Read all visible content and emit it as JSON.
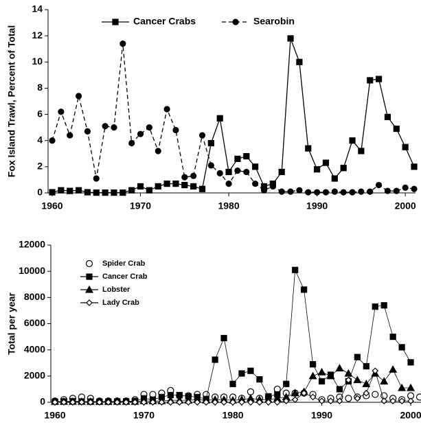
{
  "chart_data": [
    {
      "type": "line",
      "y_label": "Fox Island Trawl, Percent of Total",
      "x": [
        1960,
        1961,
        1962,
        1963,
        1964,
        1965,
        1966,
        1967,
        1968,
        1969,
        1970,
        1971,
        1972,
        1973,
        1974,
        1975,
        1976,
        1977,
        1978,
        1979,
        1980,
        1981,
        1982,
        1983,
        1984,
        1985,
        1986,
        1987,
        1988,
        1989,
        1990,
        1991,
        1992,
        1993,
        1994,
        1995,
        1996,
        1997,
        1998,
        1999,
        2000,
        2001
      ],
      "series": [
        {
          "name": "Cancer Crabs",
          "color": "#000000",
          "marker": "square",
          "dash": false,
          "values": [
            0.05,
            0.2,
            0.15,
            0.2,
            0.05,
            0.02,
            0.02,
            0.02,
            0.02,
            0.2,
            0.5,
            0.2,
            0.5,
            0.7,
            0.7,
            0.6,
            0.5,
            0.3,
            3.8,
            5.7,
            1.6,
            2.6,
            2.8,
            2.0,
            0.5,
            0.7,
            1.6,
            11.8,
            10.0,
            3.4,
            1.8,
            2.3,
            1.1,
            1.9,
            4.0,
            3.2,
            8.6,
            8.7,
            5.8,
            4.9,
            3.5,
            2.0
          ]
        },
        {
          "name": "Searobin",
          "color": "#000000",
          "marker": "circle",
          "dash": true,
          "values": [
            4.0,
            6.2,
            4.4,
            7.4,
            4.7,
            1.1,
            5.1,
            5.0,
            11.4,
            3.8,
            4.5,
            5.0,
            3.2,
            6.4,
            4.8,
            1.2,
            1.3,
            4.4,
            2.1,
            1.5,
            0.7,
            1.7,
            1.6,
            0.7,
            0.2,
            0.5,
            0.1,
            0.1,
            0.2,
            0.05,
            0.05,
            0.05,
            0.1,
            0.05,
            0.05,
            0.1,
            0.1,
            0.6,
            0.15,
            0.15,
            0.4,
            0.3
          ]
        }
      ],
      "xlim": [
        1960,
        2001
      ],
      "xticks": [
        1960,
        1970,
        1980,
        1990,
        2000
      ],
      "ylim": [
        0,
        14
      ],
      "yticks": [
        0,
        2,
        4,
        6,
        8,
        10,
        12,
        14
      ],
      "legend": "upper center"
    },
    {
      "type": "line",
      "y_label": "Total per year",
      "x": [
        1960,
        1961,
        1962,
        1963,
        1964,
        1965,
        1966,
        1967,
        1968,
        1969,
        1970,
        1971,
        1972,
        1973,
        1974,
        1975,
        1976,
        1977,
        1978,
        1979,
        1980,
        1981,
        1982,
        1983,
        1984,
        1985,
        1986,
        1987,
        1988,
        1989,
        1990,
        1991,
        1992,
        1993,
        1994,
        1995,
        1996,
        1997,
        1998,
        1999,
        2000,
        2001
      ],
      "series": [
        {
          "name": "Spider Crab",
          "color": "#000000",
          "marker": "circle-open",
          "dash": false,
          "line": false,
          "values": [
            100,
            200,
            300,
            400,
            300,
            100,
            100,
            100,
            100,
            200,
            600,
            600,
            700,
            900,
            500,
            500,
            600,
            600,
            400,
            400,
            400,
            300,
            800,
            300,
            400,
            1000,
            700,
            700,
            700,
            600,
            200,
            300,
            400,
            300,
            400,
            500,
            600,
            500,
            300,
            200,
            500,
            400
          ]
        },
        {
          "name": "Cancer Crab",
          "color": "#000000",
          "marker": "square",
          "dash": false,
          "line": true,
          "values": [
            50,
            60,
            80,
            60,
            50,
            50,
            50,
            60,
            70,
            100,
            300,
            200,
            400,
            550,
            550,
            450,
            400,
            250,
            3250,
            4900,
            1400,
            2200,
            2400,
            1750,
            450,
            600,
            1400,
            10100,
            8600,
            2900,
            1600,
            2100,
            1000,
            1600,
            3450,
            2750,
            7300,
            7400,
            5000,
            4200,
            3050,
            null
          ]
        },
        {
          "name": "Lobster",
          "color": "#000000",
          "marker": "triangle",
          "dash": false,
          "line": true,
          "values": [
            50,
            50,
            50,
            50,
            50,
            50,
            50,
            50,
            50,
            50,
            100,
            100,
            100,
            150,
            150,
            150,
            200,
            150,
            200,
            200,
            150,
            200,
            300,
            200,
            200,
            300,
            400,
            700,
            800,
            2000,
            2300,
            2000,
            2600,
            2200,
            1700,
            1400,
            2200,
            1600,
            2500,
            1100,
            1100,
            null
          ]
        },
        {
          "name": "Lady Crab",
          "color": "#000000",
          "marker": "diamond-open",
          "dash": false,
          "line": true,
          "values": [
            0,
            0,
            0,
            0,
            0,
            0,
            0,
            0,
            0,
            0,
            0,
            0,
            0,
            0,
            0,
            0,
            0,
            0,
            0,
            0,
            0,
            0,
            0,
            0,
            0,
            0,
            100,
            200,
            700,
            400,
            100,
            100,
            100,
            1700,
            300,
            700,
            2400,
            100,
            100,
            100,
            100,
            null
          ]
        }
      ],
      "xlim": [
        1960,
        2001
      ],
      "xticks": [
        1960,
        1970,
        1980,
        1990,
        2000
      ],
      "ylim": [
        0,
        12000
      ],
      "yticks": [
        0,
        2000,
        4000,
        6000,
        8000,
        10000,
        12000
      ],
      "legend": "upper left"
    }
  ]
}
